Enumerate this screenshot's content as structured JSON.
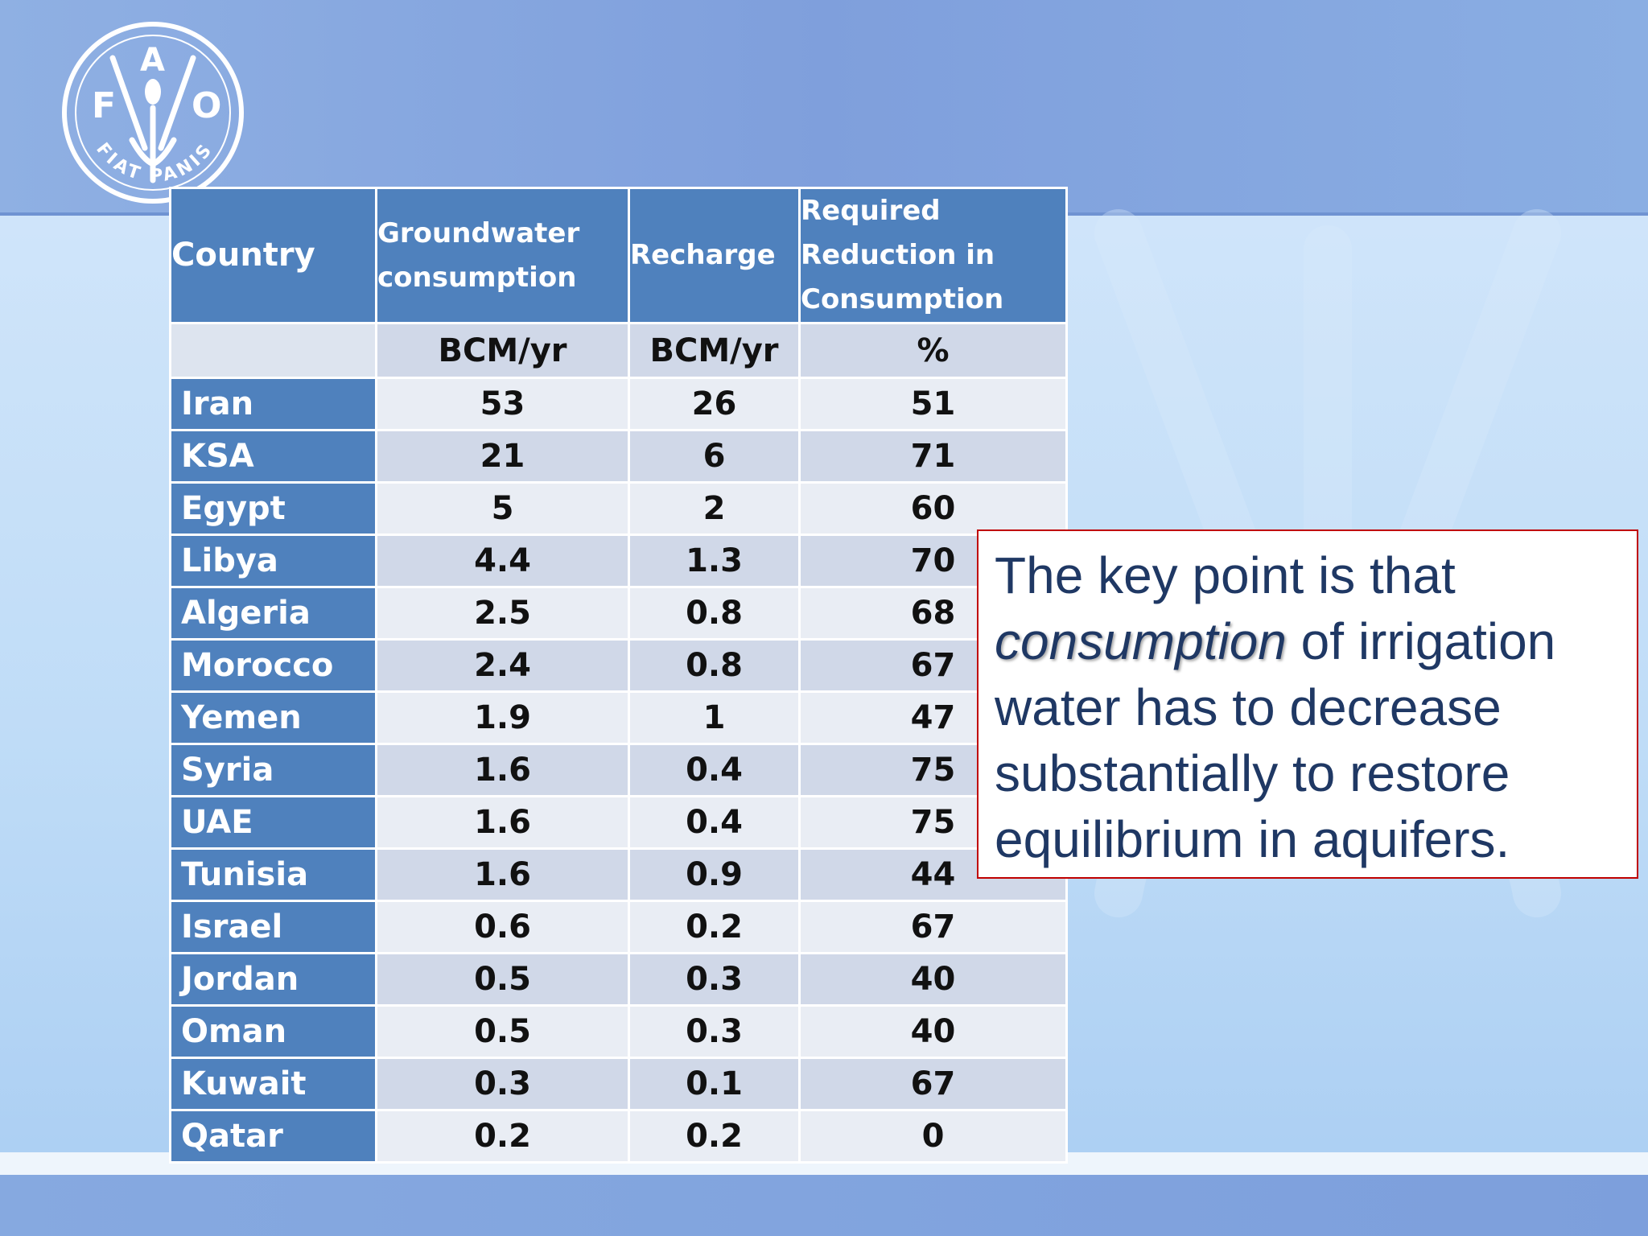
{
  "logo": {
    "letters": [
      "F",
      "A",
      "O"
    ],
    "motto": "FIAT PANIS",
    "icon": "fao-wheat-logo-icon"
  },
  "table": {
    "headers": [
      "Country",
      "Groundwater consumption",
      "Recharge",
      "Required Reduction in Consumption"
    ],
    "units": [
      "",
      "BCM/yr",
      "BCM/yr",
      "%"
    ],
    "rows": [
      {
        "country": "Iran",
        "consumption": "53",
        "recharge": "26",
        "reduction": "51"
      },
      {
        "country": "KSA",
        "consumption": "21",
        "recharge": "6",
        "reduction": "71"
      },
      {
        "country": "Egypt",
        "consumption": "5",
        "recharge": "2",
        "reduction": "60"
      },
      {
        "country": "Libya",
        "consumption": "4.4",
        "recharge": "1.3",
        "reduction": "70"
      },
      {
        "country": "Algeria",
        "consumption": "2.5",
        "recharge": "0.8",
        "reduction": "68"
      },
      {
        "country": "Morocco",
        "consumption": "2.4",
        "recharge": "0.8",
        "reduction": "67"
      },
      {
        "country": "Yemen",
        "consumption": "1.9",
        "recharge": "1",
        "reduction": "47"
      },
      {
        "country": "Syria",
        "consumption": "1.6",
        "recharge": "0.4",
        "reduction": "75"
      },
      {
        "country": "UAE",
        "consumption": "1.6",
        "recharge": "0.4",
        "reduction": "75"
      },
      {
        "country": "Tunisia",
        "consumption": "1.6",
        "recharge": "0.9",
        "reduction": "44"
      },
      {
        "country": "Israel",
        "consumption": "0.6",
        "recharge": "0.2",
        "reduction": "67"
      },
      {
        "country": "Jordan",
        "consumption": "0.5",
        "recharge": "0.3",
        "reduction": "40"
      },
      {
        "country": "Oman",
        "consumption": "0.5",
        "recharge": "0.3",
        "reduction": "40"
      },
      {
        "country": "Kuwait",
        "consumption": "0.3",
        "recharge": "0.1",
        "reduction": "67"
      },
      {
        "country": "Qatar",
        "consumption": "0.2",
        "recharge": "0.2",
        "reduction": "0"
      }
    ]
  },
  "callout": {
    "part1": "The key point is that",
    "emphasis": "consumption",
    "part2": "of irrigation water has to decrease substantially to restore equilibrium in aquifers."
  },
  "colors": {
    "header_blue": "#4f81bd",
    "row_light": "#e9edf4",
    "row_dark": "#d0d8e8",
    "callout_border": "#c00000",
    "callout_text": "#1f3864"
  }
}
